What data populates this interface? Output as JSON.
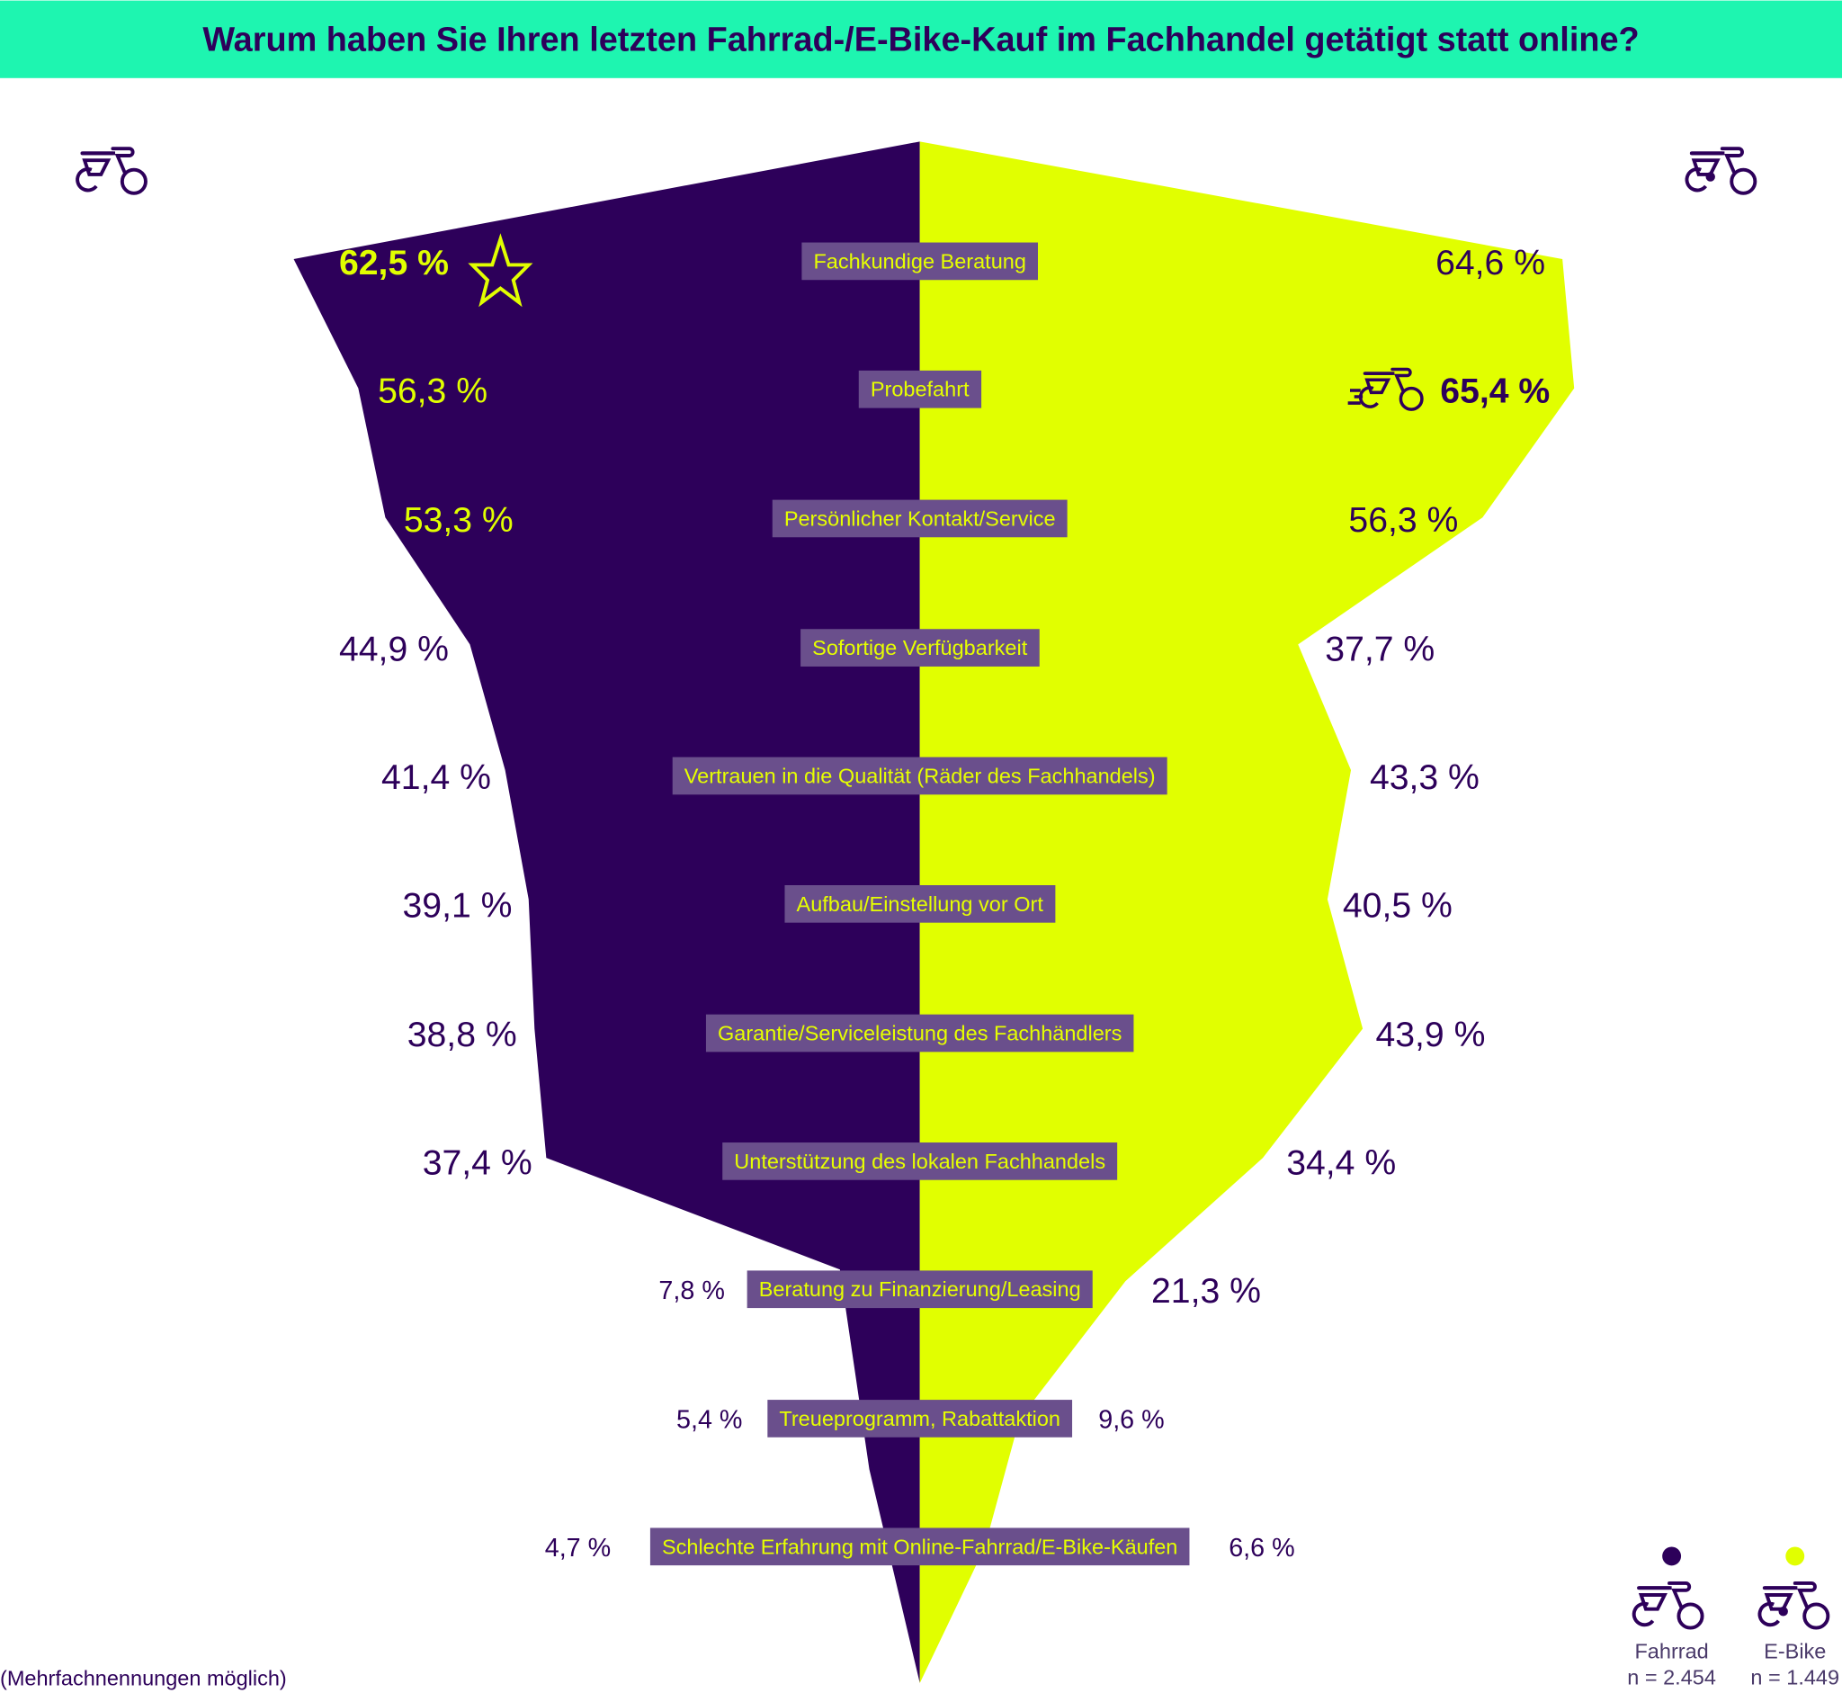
{
  "title": "Warum haben Sie Ihren letzten Fahrrad-/E-Bike-Kauf im Fachhandel getätigt statt online?",
  "footnote": "(Mehrfachnennungen möglich)",
  "colors": {
    "fahrrad": "#2d005a",
    "ebike": "#e1ff00",
    "header": "#1ef5b0",
    "label_box": "#6a4f8c"
  },
  "legend": [
    {
      "name": "Fahrrad",
      "n": "n = 2.454",
      "icon": "bicycle-icon"
    },
    {
      "name": "E-Bike",
      "n": "n = 1.449",
      "icon": "ebike-icon"
    }
  ],
  "chart_data": {
    "type": "bar",
    "orientation": "horizontal-mirrored",
    "categories": [
      "Fachkundige Beratung",
      "Probefahrt",
      "Persönlicher Kontakt/Service",
      "Sofortige Verfügbarkeit",
      "Vertrauen in die Qualität (Räder des Fachhandels)",
      "Aufbau/Einstellung vor Ort",
      "Garantie/Serviceleistung des Fachhändlers",
      "Unterstützung des lokalen Fachhandels",
      "Beratung zu Finanzierung/Leasing",
      "Treueprogramm, Rabattaktion",
      "Schlechte Erfahrung mit Online-Fahrrad/E-Bike-Käufen"
    ],
    "series": [
      {
        "name": "Fahrrad",
        "values": [
          62.5,
          56.3,
          53.3,
          44.9,
          41.4,
          39.1,
          38.8,
          37.4,
          7.8,
          5.4,
          4.7
        ],
        "labels": [
          "62,5 %",
          "56,3 %",
          "53,3 %",
          "44,9 %",
          "41,4 %",
          "39,1 %",
          "38,8 %",
          "37,4 %",
          "7,8 %",
          "5,4 %",
          "4,7 %"
        ],
        "highlight": "Fachkundige Beratung (star-icon)"
      },
      {
        "name": "E-Bike",
        "values": [
          64.6,
          65.4,
          56.3,
          37.7,
          43.3,
          40.5,
          43.9,
          34.4,
          21.3,
          9.6,
          6.6
        ],
        "labels": [
          "64,6 %",
          "65,4 %",
          "56,3 %",
          "37,7 %",
          "43,3 %",
          "40,5 %",
          "43,9 %",
          "34,4 %",
          "21,3 %",
          "9,6 %",
          "6,6 %"
        ],
        "highlight": "Probefahrt (ebike-icon)"
      }
    ],
    "unit": "%"
  }
}
